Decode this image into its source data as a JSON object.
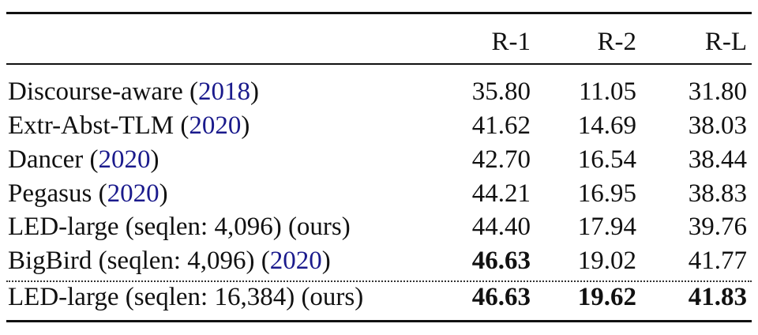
{
  "table": {
    "headers": [
      "R-1",
      "R-2",
      "R-L"
    ],
    "rows": [
      {
        "name": "Discourse-aware (",
        "year": "2018",
        "suffix": ")",
        "r1": "35.80",
        "r2": "11.05",
        "rl": "31.80"
      },
      {
        "name": "Extr-Abst-TLM (",
        "year": "2020",
        "suffix": ")",
        "r1": "41.62",
        "r2": "14.69",
        "rl": "38.03"
      },
      {
        "name": "Dancer (",
        "year": "2020",
        "suffix": ")",
        "r1": "42.70",
        "r2": "16.54",
        "rl": "38.44"
      },
      {
        "name": "Pegasus (",
        "year": "2020",
        "suffix": ")",
        "r1": "44.21",
        "r2": "16.95",
        "rl": "38.83"
      },
      {
        "name": "LED-large (seqlen: 4,096) (ours)",
        "year": "",
        "suffix": "",
        "r1": "44.40",
        "r2": "17.94",
        "rl": "39.76"
      },
      {
        "name": "BigBird (seqlen: 4,096) (",
        "year": "2020",
        "suffix": ")",
        "r1": "46.63",
        "r2": "19.02",
        "rl": "41.77"
      },
      {
        "name": "LED-large (seqlen: 16,384) (ours)",
        "year": "",
        "suffix": "",
        "r1": "46.63",
        "r2": "19.62",
        "rl": "41.83"
      }
    ]
  }
}
